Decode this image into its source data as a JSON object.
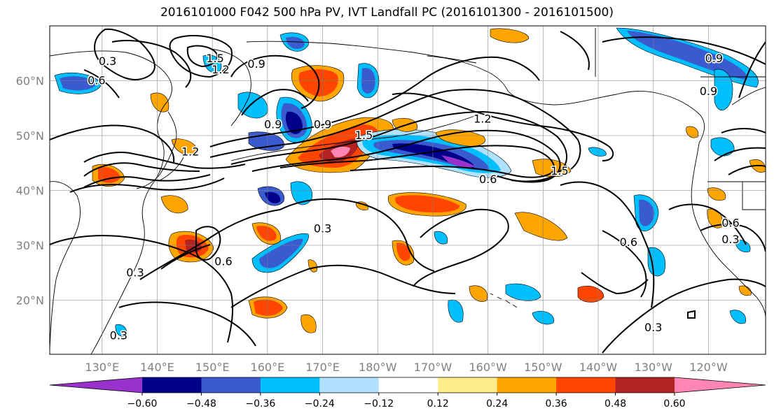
{
  "title": "2016101000 F042 500 hPa PV, IVT Landfall PC (2016101300 - 2016101500)",
  "lon_labels": [
    "130°E",
    "140°E",
    "150°E",
    "160°E",
    "170°E",
    "180°W",
    "170°W",
    "160°W",
    "150°W",
    "140°W",
    "130°W",
    "120°W"
  ],
  "lat_labels": [
    "60°N",
    "50°N",
    "40°N",
    "30°N",
    "20°N"
  ],
  "colorbar": {
    "levels": [
      -0.72,
      -0.6,
      -0.48,
      -0.36,
      -0.24,
      -0.12,
      0.12,
      0.24,
      0.36,
      0.48,
      0.6,
      0.72
    ],
    "colors": [
      "#9932cc",
      "#00008b",
      "#3a5bd0",
      "#00bfff",
      "#b0e2ff",
      "#ffffff",
      "#ffec8b",
      "#ffa500",
      "#ff4500",
      "#b22222",
      "#ff85b5"
    ],
    "tick_labels": [
      "−0.60",
      "−0.48",
      "−0.36",
      "−0.24",
      "−0.12",
      "0.12",
      "0.24",
      "0.36",
      "0.48",
      "0.60"
    ]
  },
  "contour_labels": [
    {
      "text": "0.3",
      "lon": 131,
      "lat": 63.5
    },
    {
      "text": "0.6",
      "lon": 129,
      "lat": 60
    },
    {
      "text": "1.5",
      "lon": 150.5,
      "lat": 64
    },
    {
      "text": "1.2",
      "lon": 151.5,
      "lat": 62
    },
    {
      "text": "0.9",
      "lon": 158,
      "lat": 63
    },
    {
      "text": "0.9",
      "lon": 161,
      "lat": 52
    },
    {
      "text": "0.9",
      "lon": 170,
      "lat": 52
    },
    {
      "text": "1.5",
      "lon": 177.5,
      "lat": 50
    },
    {
      "text": "1.2",
      "lon": 146,
      "lat": 47
    },
    {
      "text": "1.2",
      "lon": -161,
      "lat": 53
    },
    {
      "text": "1.5",
      "lon": -147,
      "lat": 43.5
    },
    {
      "text": "0.6",
      "lon": -160,
      "lat": 42
    },
    {
      "text": "0.3",
      "lon": 170,
      "lat": 33
    },
    {
      "text": "0.6",
      "lon": 152,
      "lat": 27
    },
    {
      "text": "0.3",
      "lon": 136,
      "lat": 25
    },
    {
      "text": "0.3",
      "lon": 133,
      "lat": 13.5
    },
    {
      "text": "0.6",
      "lon": -134.5,
      "lat": 30.5
    },
    {
      "text": "0.3",
      "lon": -130,
      "lat": 15
    },
    {
      "text": "0.3",
      "lon": -116,
      "lat": 31
    },
    {
      "text": "0.6",
      "lon": -116,
      "lat": 34
    },
    {
      "text": "0.9",
      "lon": -119,
      "lat": 64
    },
    {
      "text": "0.9",
      "lon": -120,
      "lat": 58
    }
  ]
}
